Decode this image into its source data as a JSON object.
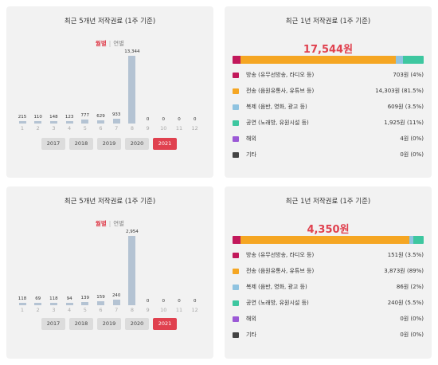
{
  "colors": {
    "accent": "#e0414f",
    "bar": "#b4c3d3",
    "year_btn": "#dcdcdc",
    "cat_broadcast": "#c2185b",
    "cat_transfer": "#f5a623",
    "cat_copy": "#8fc3e0",
    "cat_performance": "#3ec7a0",
    "cat_overseas": "#9b59d6",
    "cat_other": "#444444"
  },
  "panels": [
    {
      "monthly": {
        "title": "최근 5개년 저작권료 (1주 기준)",
        "toggle_on": "월별",
        "toggle_sep": "|",
        "toggle_off": "연별",
        "years": [
          "2017",
          "2018",
          "2019",
          "2020",
          "2021"
        ],
        "active_year": "2021",
        "chart_data": {
          "type": "bar",
          "categories": [
            "1",
            "2",
            "3",
            "4",
            "5",
            "6",
            "7",
            "8",
            "9",
            "10",
            "11",
            "12"
          ],
          "values": [
            215,
            110,
            148,
            123,
            777,
            629,
            933,
            13344,
            0,
            0,
            0,
            0
          ],
          "value_labels": [
            "215",
            "110",
            "148",
            "123",
            "777",
            "629",
            "933",
            "13,344",
            "0",
            "0",
            "0",
            "0"
          ]
        }
      },
      "yearly": {
        "title": "최근 1년 저작권료 (1주 기준)",
        "total": "17,544원",
        "categories": [
          {
            "label": "방송 (유무선방송, 라디오 등)",
            "value": "703원 (4%)",
            "share": 4,
            "color": "#c2185b"
          },
          {
            "label": "전송 (음원유통사, 유튜브 등)",
            "value": "14,303원 (81.5%)",
            "share": 81.5,
            "color": "#f5a623"
          },
          {
            "label": "복제 (음반, 영화, 광고 등)",
            "value": "609원 (3.5%)",
            "share": 3.5,
            "color": "#8fc3e0"
          },
          {
            "label": "공연 (노래방, 유원시설 등)",
            "value": "1,925원 (11%)",
            "share": 11,
            "color": "#3ec7a0"
          },
          {
            "label": "해외",
            "value": "4원 (0%)",
            "share": 0,
            "color": "#9b59d6"
          },
          {
            "label": "기타",
            "value": "0원 (0%)",
            "share": 0,
            "color": "#444444"
          }
        ]
      }
    },
    {
      "monthly": {
        "title": "최근 5개년 저작권료 (1주 기준)",
        "toggle_on": "월별",
        "toggle_sep": "|",
        "toggle_off": "연별",
        "years": [
          "2017",
          "2018",
          "2019",
          "2020",
          "2021"
        ],
        "active_year": "2021",
        "chart_data": {
          "type": "bar",
          "categories": [
            "1",
            "2",
            "3",
            "4",
            "5",
            "6",
            "7",
            "8",
            "9",
            "10",
            "11",
            "12"
          ],
          "values": [
            118,
            69,
            118,
            94,
            139,
            159,
            240,
            2954,
            0,
            0,
            0,
            0
          ],
          "value_labels": [
            "118",
            "69",
            "118",
            "94",
            "139",
            "159",
            "240",
            "2,954",
            "0",
            "0",
            "0",
            "0"
          ]
        }
      },
      "yearly": {
        "title": "최근 1년 저작권료 (1주 기준)",
        "total": "4,350원",
        "categories": [
          {
            "label": "방송 (유무선방송, 라디오 등)",
            "value": "151원 (3.5%)",
            "share": 3.5,
            "color": "#c2185b"
          },
          {
            "label": "전송 (음원유통사, 유튜브 등)",
            "value": "3,873원 (89%)",
            "share": 89,
            "color": "#f5a623"
          },
          {
            "label": "복제 (음반, 영화, 광고 등)",
            "value": "86원 (2%)",
            "share": 2,
            "color": "#8fc3e0"
          },
          {
            "label": "공연 (노래방, 유원시설 등)",
            "value": "240원 (5.5%)",
            "share": 5.5,
            "color": "#3ec7a0"
          },
          {
            "label": "해외",
            "value": "0원 (0%)",
            "share": 0,
            "color": "#9b59d6"
          },
          {
            "label": "기타",
            "value": "0원 (0%)",
            "share": 0,
            "color": "#444444"
          }
        ]
      }
    }
  ]
}
